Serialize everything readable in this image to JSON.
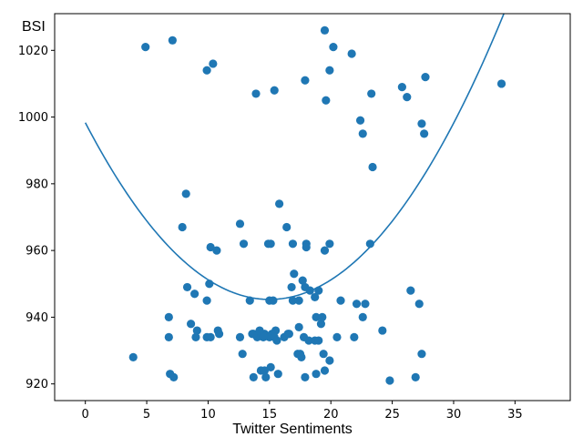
{
  "chart_data": {
    "type": "scatter",
    "xlabel": "Twitter Sentiments",
    "ylabel": "BSI",
    "xlim": [
      -2.5,
      39.5
    ],
    "ylim": [
      915,
      1031
    ],
    "xticks": [
      0,
      5,
      10,
      15,
      20,
      25,
      30,
      35
    ],
    "yticks": [
      920,
      940,
      960,
      980,
      1000,
      1020
    ],
    "grid": false,
    "legend": "none",
    "colors": {
      "points": "#1f77b4",
      "fit_line": "#1f77b4"
    },
    "series": [
      {
        "type": "scatter",
        "x": [
          4.9,
          7.1,
          9.9,
          10.4,
          13.9,
          15.4,
          17.9,
          19.5,
          20.2,
          19.9,
          21.7,
          19.6,
          22.4,
          22.6,
          23.3,
          25.8,
          26.2,
          27.4,
          27.7,
          27.6,
          33.9,
          23.4,
          8.2,
          7.9,
          12.6,
          10.2,
          10.7,
          12.9,
          14.9,
          15.1,
          15.8,
          16.4,
          16.9,
          18.0,
          18.0,
          19.5,
          19.9,
          23.2,
          8.3,
          8.9,
          9.9,
          10.1,
          13.4,
          15.0,
          15.3,
          16.8,
          16.9,
          17.0,
          17.4,
          17.7,
          17.9,
          18.3,
          18.7,
          18.8,
          19.0,
          20.8,
          22.1,
          22.8,
          26.5,
          27.2,
          6.8,
          8.6,
          9.1,
          10.2,
          10.8,
          10.9,
          13.6,
          14.0,
          14.6,
          15.0,
          15.5,
          16.2,
          16.6,
          17.4,
          17.8,
          18.2,
          18.7,
          19.2,
          19.3,
          19.0,
          20.5,
          21.9,
          22.6,
          24.2,
          6.8,
          9.0,
          9.9,
          12.6,
          12.8,
          13.7,
          14.2,
          14.5,
          15.2,
          15.4,
          15.6,
          16.5,
          17.3,
          17.5,
          17.6,
          19.4,
          19.9,
          27.4,
          3.9,
          6.9,
          7.2,
          13.7,
          14.3,
          14.6,
          14.7,
          15.1,
          15.7,
          17.9,
          18.8,
          19.5,
          24.8,
          26.9
        ],
        "y": [
          1021,
          1023,
          1014,
          1016,
          1007,
          1008,
          1011,
          1026,
          1021,
          1014,
          1019,
          1005,
          999,
          995,
          1007,
          1009,
          1006,
          998,
          1012,
          995,
          1010,
          985,
          977,
          967,
          968,
          961,
          960,
          962,
          962,
          962,
          974,
          967,
          962,
          962,
          961,
          960,
          962,
          962,
          949,
          947,
          945,
          950,
          945,
          945,
          945,
          949,
          945,
          953,
          945,
          951,
          949,
          948,
          946,
          940,
          948,
          945,
          944,
          944,
          948,
          944,
          940,
          938,
          936,
          934,
          936,
          935,
          935,
          934,
          935,
          934,
          936,
          934,
          935,
          937,
          934,
          933,
          933,
          938,
          940,
          933,
          934,
          934,
          940,
          936,
          934,
          934,
          934,
          934,
          929,
          935,
          936,
          934,
          935,
          934,
          933,
          935,
          929,
          929,
          928,
          929,
          927,
          929,
          928,
          923,
          922,
          922,
          924,
          924,
          922,
          925,
          923,
          922,
          923,
          924,
          921,
          922
        ]
      },
      {
        "type": "line",
        "fit": "quadratic",
        "x_range": [
          0,
          37
        ],
        "coefficients": [
          998.3,
          -7.06,
          0.2352
        ]
      }
    ]
  }
}
